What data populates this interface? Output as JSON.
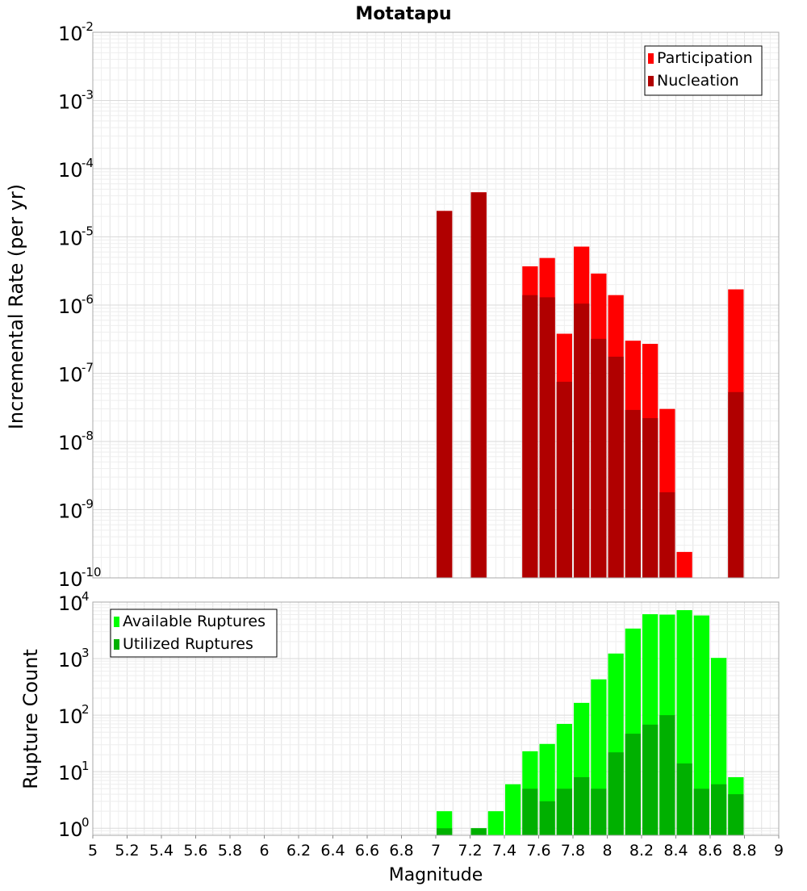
{
  "chart_data": [
    {
      "type": "bar",
      "title": "Motatapu",
      "ylabel": "Incremental Rate (per yr)",
      "xlabel": "",
      "yscale": "log",
      "ylim": [
        1e-10,
        0.01
      ],
      "xlim": [
        5,
        9
      ],
      "bar_width": 0.1,
      "y_exponents": [
        "-2",
        "-3",
        "-4",
        "-5",
        "-6",
        "-7",
        "-8",
        "-9",
        "-10"
      ],
      "y_base": "10",
      "legend": {
        "position": "top-right",
        "entries": [
          {
            "label": "Participation",
            "color": "#ff0000"
          },
          {
            "label": "Nucleation",
            "color": "#b00000"
          }
        ]
      },
      "series": [
        {
          "name": "Participation",
          "color": "#ff0000",
          "x": [
            7.05,
            7.25,
            7.55,
            7.65,
            7.75,
            7.85,
            7.95,
            8.05,
            8.15,
            8.25,
            8.35,
            8.45,
            8.75
          ],
          "values": [
            2.4e-05,
            4.5e-05,
            3.7e-06,
            4.9e-06,
            3.8e-07,
            7.2e-06,
            2.9e-06,
            1.4e-06,
            3e-07,
            2.7e-07,
            3e-08,
            2.4e-10,
            1.7e-06
          ]
        },
        {
          "name": "Nucleation",
          "color": "#b00000",
          "x": [
            7.05,
            7.25,
            7.55,
            7.65,
            7.75,
            7.85,
            7.95,
            8.05,
            8.15,
            8.25,
            8.35,
            8.75
          ],
          "values": [
            2.4e-05,
            4.5e-05,
            1.4e-06,
            1.3e-06,
            7.5e-08,
            1.05e-06,
            3.2e-07,
            1.75e-07,
            2.9e-08,
            2.2e-08,
            1.8e-09,
            5.3e-08
          ]
        }
      ]
    },
    {
      "type": "bar",
      "title": "",
      "ylabel": "Rupture Count",
      "xlabel": "Magnitude",
      "yscale": "log",
      "ylim": [
        0.75,
        10000
      ],
      "xlim": [
        5,
        9
      ],
      "bar_width": 0.1,
      "y_exponents": [
        "4",
        "3",
        "2",
        "1",
        "0"
      ],
      "y_base": "10",
      "x_ticks": [
        "5",
        "5.2",
        "5.4",
        "5.6",
        "5.8",
        "6",
        "6.2",
        "6.4",
        "6.6",
        "6.8",
        "7",
        "7.2",
        "7.4",
        "7.6",
        "7.8",
        "8",
        "8.2",
        "8.4",
        "8.6",
        "8.8",
        "9"
      ],
      "legend": {
        "position": "top-left",
        "entries": [
          {
            "label": "Available Ruptures",
            "color": "#00ff00"
          },
          {
            "label": "Utilized Ruptures",
            "color": "#00b000"
          }
        ]
      },
      "series": [
        {
          "name": "Available Ruptures",
          "color": "#00ff00",
          "x": [
            7.05,
            7.25,
            7.35,
            7.45,
            7.55,
            7.65,
            7.75,
            7.85,
            7.95,
            8.05,
            8.15,
            8.25,
            8.35,
            8.45,
            8.55,
            8.65,
            8.75
          ],
          "values": [
            2,
            1,
            2,
            6,
            23,
            31,
            70,
            165,
            430,
            1230,
            3400,
            6100,
            6000,
            7200,
            5800,
            1030,
            8
          ]
        },
        {
          "name": "Utilized Ruptures",
          "color": "#00b000",
          "x": [
            7.05,
            7.25,
            7.55,
            7.65,
            7.75,
            7.85,
            7.95,
            8.05,
            8.15,
            8.25,
            8.35,
            8.45,
            8.55,
            8.65,
            8.75
          ],
          "values": [
            1,
            1,
            5,
            3,
            5,
            8,
            5,
            22,
            47,
            68,
            100,
            14,
            5,
            6,
            4
          ]
        }
      ]
    }
  ]
}
